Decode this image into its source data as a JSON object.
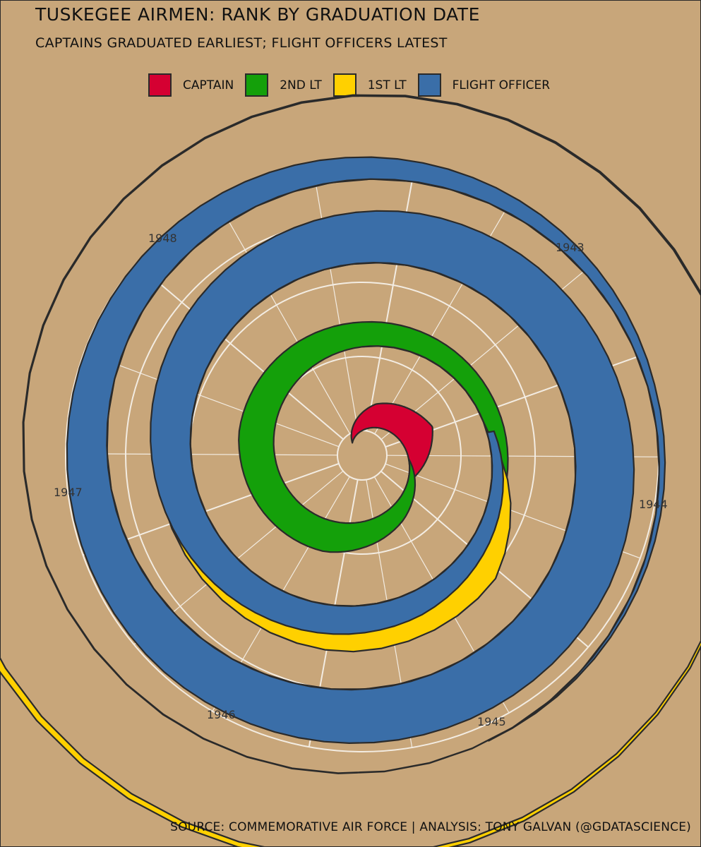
{
  "title": "TUSKEGEE AIRMEN: RANK BY GRADUATION DATE",
  "subtitle": "CAPTAINS GRADUATED EARLIEST; FLIGHT OFFICERS LATEST",
  "caption": "SOURCE: COMMEMORATIVE AIR FORCE  |  ANALYSIS: TONY GALVAN (@GDATASCIENCE)",
  "legend": [
    {
      "label": "CAPTAIN",
      "color": "#d50032"
    },
    {
      "label": "2ND LT",
      "color": "#14a00a"
    },
    {
      "label": "1ST LT",
      "color": "#ffd000"
    },
    {
      "label": "FLIGHT OFFICER",
      "color": "#3a6ea8"
    }
  ],
  "chart_data": {
    "type": "area",
    "coordinate_system": "polar spiral (radius increases with time, one turn per year)",
    "x": "graduation date",
    "year_ticks": [
      "1943",
      "1944",
      "1945",
      "1946",
      "1947",
      "1948"
    ],
    "series": [
      {
        "name": "CAPTAIN",
        "color": "#d50032",
        "points": [
          [
            "1942-07",
            0.0
          ],
          [
            "1942-09",
            0.35
          ],
          [
            "1942-11",
            0.5
          ],
          [
            "1943-01",
            0.0
          ]
        ]
      },
      {
        "name": "2ND LT",
        "color": "#14a00a",
        "points": [
          [
            "1942-12",
            0.0
          ],
          [
            "1943-02",
            0.25
          ],
          [
            "1943-04",
            0.45
          ],
          [
            "1943-07",
            0.5
          ],
          [
            "1943-10",
            0.35
          ],
          [
            "1944-01",
            0.25
          ],
          [
            "1944-05",
            0.05
          ],
          [
            "1944-08",
            0.0
          ],
          [
            "1945-01",
            0.0
          ]
        ]
      },
      {
        "name": "1ST LT",
        "color": "#ffd000",
        "points": [
          [
            "1943-10",
            0.0
          ],
          [
            "1944-01",
            0.0
          ],
          [
            "1944-03",
            0.6
          ],
          [
            "1944-05",
            0.65
          ],
          [
            "1944-08",
            0.5
          ],
          [
            "1944-12",
            0.25
          ],
          [
            "1945-04",
            0.0
          ],
          [
            "1945-08",
            0.0
          ],
          [
            "1946-06",
            0.0
          ],
          [
            "1947-06",
            0.02
          ],
          [
            "1947-12",
            0.1
          ]
        ]
      },
      {
        "name": "FLIGHT OFFICER",
        "color": "#3a6ea8",
        "points": [
          [
            "1944-01",
            0.1
          ],
          [
            "1944-04",
            0.35
          ],
          [
            "1944-08",
            0.55
          ],
          [
            "1944-12",
            0.75
          ],
          [
            "1945-04",
            0.85
          ],
          [
            "1945-08",
            0.7
          ],
          [
            "1945-12",
            0.4
          ],
          [
            "1946-04",
            0.1
          ],
          [
            "1946-07",
            0.0
          ]
        ]
      }
    ],
    "grid": true,
    "legend_position": "top-center"
  }
}
